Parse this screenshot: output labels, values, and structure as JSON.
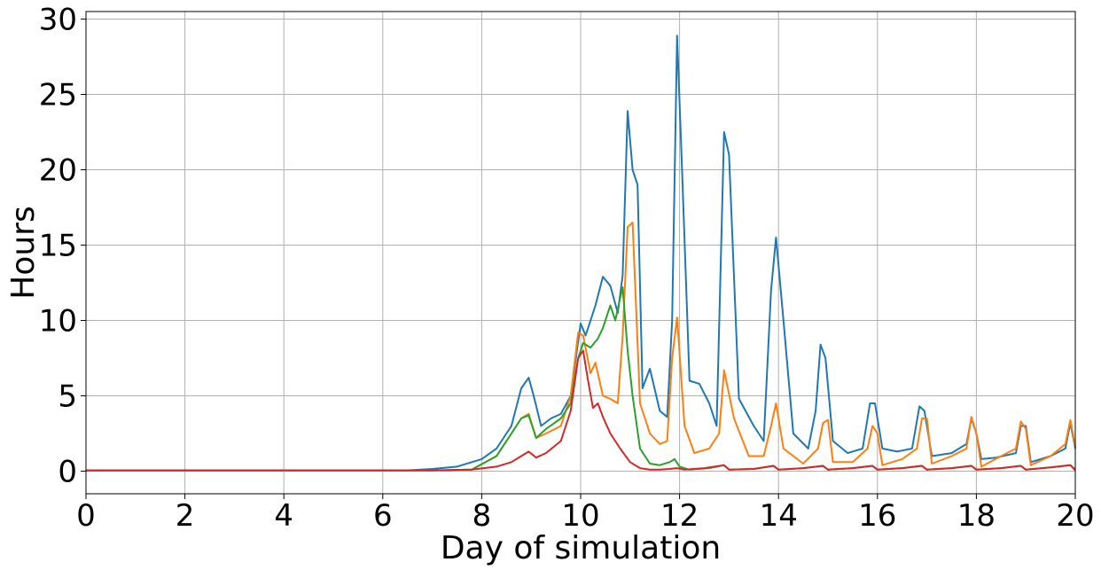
{
  "chart_data": {
    "type": "line",
    "title": "",
    "xlabel": "Day of simulation",
    "ylabel": "Hours",
    "xlim": [
      0,
      20
    ],
    "ylim": [
      -1.5,
      30.5
    ],
    "xticks": [
      0,
      2,
      4,
      6,
      8,
      10,
      12,
      14,
      16,
      18,
      20
    ],
    "yticks": [
      0,
      5,
      10,
      15,
      20,
      25,
      30
    ],
    "grid": true,
    "legend": "none",
    "colors": [
      "#1f77b4",
      "#ff7f0e",
      "#2ca02c",
      "#d62728"
    ],
    "series": [
      {
        "color": "#1f77b4",
        "x": [
          0,
          6.5,
          7.0,
          7.5,
          7.8,
          8.0,
          8.3,
          8.6,
          8.8,
          8.95,
          9.05,
          9.2,
          9.4,
          9.6,
          9.8,
          10.0,
          10.1,
          10.3,
          10.45,
          10.6,
          10.75,
          10.85,
          10.95,
          11.05,
          11.15,
          11.25,
          11.4,
          11.6,
          11.75,
          11.85,
          11.95,
          12.05,
          12.2,
          12.4,
          12.6,
          12.75,
          12.9,
          13.0,
          13.2,
          13.5,
          13.7,
          13.85,
          13.95,
          14.1,
          14.3,
          14.6,
          14.75,
          14.85,
          14.95,
          15.1,
          15.4,
          15.7,
          15.85,
          15.95,
          16.1,
          16.4,
          16.7,
          16.85,
          16.95,
          17.1,
          17.5,
          17.8,
          17.9,
          18.0,
          18.1,
          18.4,
          18.8,
          18.9,
          19.0,
          19.1,
          19.5,
          19.8,
          19.9,
          20.0
        ],
        "y": [
          0.05,
          0.05,
          0.15,
          0.3,
          0.6,
          0.8,
          1.5,
          3.0,
          5.5,
          6.2,
          5.0,
          3.0,
          3.5,
          3.8,
          5.0,
          9.8,
          9.0,
          11.0,
          12.9,
          12.3,
          10.5,
          13.0,
          23.9,
          20.0,
          19.0,
          5.5,
          6.8,
          4.0,
          3.6,
          10.0,
          28.9,
          20.0,
          6.0,
          5.8,
          4.5,
          3.0,
          22.5,
          21.0,
          4.8,
          3.0,
          2.0,
          12.0,
          15.5,
          10.0,
          2.5,
          1.5,
          4.0,
          8.4,
          7.5,
          2.0,
          1.2,
          1.5,
          4.5,
          4.5,
          1.5,
          1.3,
          1.5,
          4.3,
          4.0,
          1.0,
          1.2,
          1.8,
          3.5,
          2.5,
          0.8,
          0.9,
          1.2,
          3.0,
          3.0,
          0.6,
          1.0,
          1.5,
          3.2,
          1.5
        ]
      },
      {
        "color": "#ff7f0e",
        "x": [
          0,
          7.0,
          7.8,
          8.3,
          8.6,
          8.8,
          8.95,
          9.1,
          9.3,
          9.6,
          9.8,
          9.95,
          10.05,
          10.2,
          10.3,
          10.45,
          10.6,
          10.75,
          10.85,
          10.95,
          11.05,
          11.2,
          11.4,
          11.6,
          11.75,
          11.85,
          11.95,
          12.1,
          12.3,
          12.6,
          12.8,
          12.9,
          13.1,
          13.4,
          13.7,
          13.85,
          13.95,
          14.1,
          14.5,
          14.8,
          14.9,
          15.0,
          15.1,
          15.5,
          15.8,
          15.9,
          16.0,
          16.1,
          16.5,
          16.8,
          16.9,
          17.0,
          17.1,
          17.5,
          17.8,
          17.9,
          18.0,
          18.1,
          18.5,
          18.8,
          18.9,
          19.0,
          19.1,
          19.5,
          19.8,
          19.9,
          20.0
        ],
        "y": [
          0.05,
          0.05,
          0.1,
          1.0,
          2.5,
          3.5,
          3.8,
          2.2,
          2.5,
          3.0,
          5.0,
          9.2,
          9.0,
          6.5,
          7.2,
          5.0,
          4.8,
          4.5,
          9.0,
          16.2,
          16.5,
          4.5,
          2.5,
          1.8,
          2.0,
          7.5,
          10.2,
          3.0,
          1.2,
          1.5,
          2.5,
          6.7,
          3.5,
          1.0,
          1.0,
          3.0,
          4.5,
          1.5,
          0.5,
          1.5,
          3.2,
          3.4,
          0.6,
          0.6,
          1.5,
          3.0,
          2.5,
          0.4,
          0.8,
          1.5,
          3.5,
          3.5,
          0.5,
          1.0,
          1.5,
          3.6,
          2.5,
          0.3,
          1.0,
          1.5,
          3.3,
          2.8,
          0.4,
          1.0,
          1.8,
          3.4,
          1.6
        ]
      },
      {
        "color": "#2ca02c",
        "x": [
          0,
          7.0,
          7.8,
          8.3,
          8.6,
          8.8,
          8.95,
          9.1,
          9.3,
          9.6,
          9.8,
          9.95,
          10.05,
          10.2,
          10.35,
          10.45,
          10.6,
          10.7,
          10.8,
          10.85,
          10.95,
          11.05,
          11.2,
          11.4,
          11.6,
          11.8,
          11.9,
          12.0,
          12.2,
          12.6,
          12.9,
          13.0,
          13.5,
          13.9,
          14.0,
          14.5,
          14.9,
          15.0,
          15.5,
          15.9,
          16.0,
          16.5,
          16.9,
          17.0,
          17.5,
          17.9,
          18.0,
          18.5,
          18.9,
          19.0,
          19.5,
          19.9,
          20.0
        ],
        "y": [
          0.05,
          0.05,
          0.1,
          1.0,
          2.5,
          3.5,
          3.7,
          2.2,
          2.8,
          3.5,
          4.5,
          7.5,
          8.5,
          8.2,
          8.8,
          9.5,
          11.0,
          10.0,
          11.5,
          12.2,
          8.0,
          5.0,
          1.5,
          0.5,
          0.4,
          0.6,
          0.8,
          0.3,
          0.1,
          0.2,
          0.4,
          0.1,
          0.15,
          0.35,
          0.1,
          0.2,
          0.35,
          0.1,
          0.2,
          0.35,
          0.1,
          0.2,
          0.35,
          0.1,
          0.2,
          0.35,
          0.1,
          0.2,
          0.35,
          0.1,
          0.25,
          0.4,
          0.1
        ]
      },
      {
        "color": "#d62728",
        "x": [
          0,
          7.0,
          7.8,
          8.3,
          8.6,
          8.8,
          8.95,
          9.1,
          9.3,
          9.6,
          9.8,
          9.95,
          10.05,
          10.15,
          10.25,
          10.35,
          10.45,
          10.6,
          10.8,
          11.0,
          11.2,
          11.4,
          11.6,
          11.8,
          11.95,
          12.1,
          12.5,
          12.9,
          13.0,
          13.5,
          13.9,
          14.0,
          14.5,
          14.9,
          15.0,
          15.5,
          15.9,
          16.0,
          16.5,
          16.9,
          17.0,
          17.5,
          17.9,
          18.0,
          18.5,
          18.9,
          19.0,
          19.5,
          19.9,
          20.0
        ],
        "y": [
          0.05,
          0.05,
          0.1,
          0.3,
          0.6,
          1.0,
          1.3,
          0.9,
          1.2,
          2.0,
          4.0,
          7.5,
          8.0,
          6.0,
          4.2,
          4.5,
          3.6,
          2.5,
          1.5,
          0.6,
          0.2,
          0.1,
          0.1,
          0.15,
          0.2,
          0.1,
          0.2,
          0.4,
          0.1,
          0.15,
          0.35,
          0.1,
          0.2,
          0.35,
          0.1,
          0.2,
          0.35,
          0.1,
          0.2,
          0.35,
          0.1,
          0.2,
          0.35,
          0.1,
          0.2,
          0.35,
          0.1,
          0.25,
          0.4,
          0.05
        ]
      }
    ]
  }
}
